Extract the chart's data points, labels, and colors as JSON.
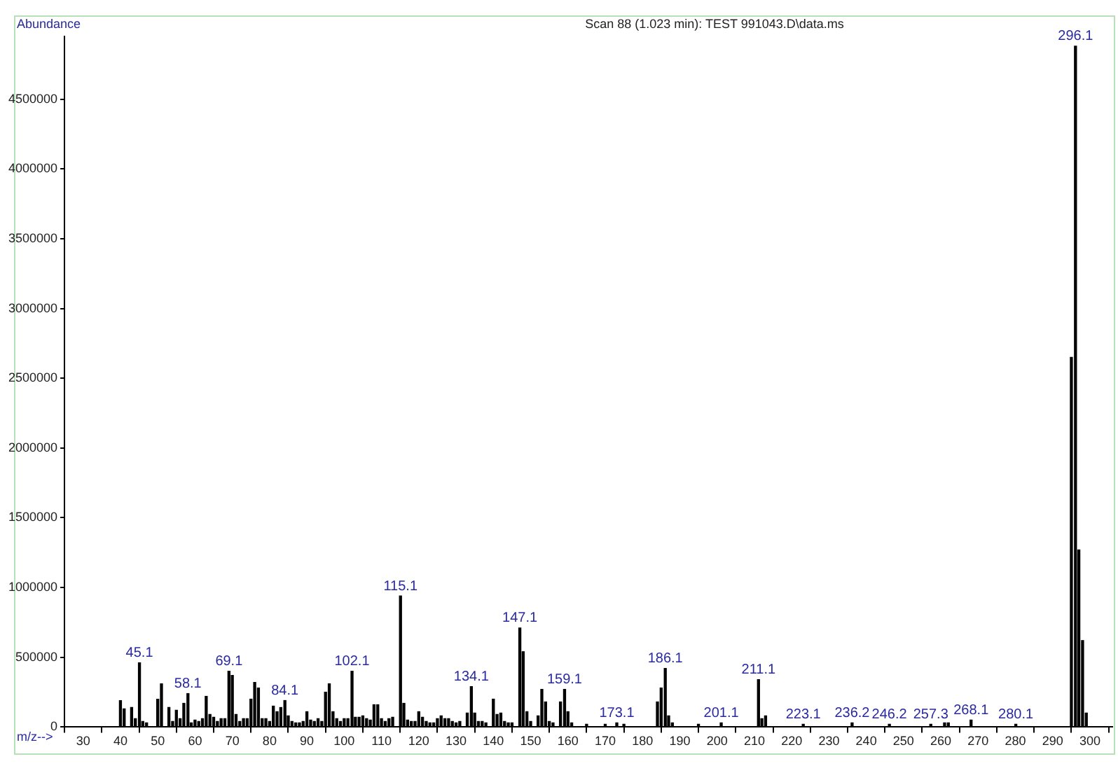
{
  "chart_data": {
    "type": "bar",
    "title": "Scan 88 (1.023 min): TEST 991043.D\\data.ms",
    "xlabel": "m/z-->",
    "ylabel": "Abundance",
    "color": "#000000",
    "x": [
      40,
      41,
      43,
      44,
      45.1,
      46,
      47,
      50,
      51,
      53,
      54,
      55,
      56,
      57,
      58.1,
      59,
      60,
      61,
      62,
      63,
      64,
      65,
      66,
      67,
      68,
      69.1,
      70,
      71,
      72,
      73,
      74,
      75,
      76,
      77,
      78,
      79,
      80,
      81,
      82,
      83,
      84.1,
      85,
      86,
      87,
      88,
      89,
      90,
      91,
      92,
      93,
      94,
      95,
      96,
      97,
      98,
      99,
      100,
      101,
      102.1,
      103,
      104,
      105,
      106,
      107,
      108,
      109,
      110,
      111,
      112,
      113,
      115.1,
      116,
      117,
      118,
      119,
      120,
      121,
      122,
      123,
      124,
      125,
      126,
      127,
      128,
      129,
      130,
      131,
      133,
      134.1,
      135,
      136,
      137,
      138,
      140,
      141,
      142,
      143,
      144,
      145,
      147.1,
      148,
      149,
      150,
      152,
      153,
      154,
      155,
      156,
      158,
      159.1,
      160,
      161,
      165,
      170,
      173.1,
      175,
      184,
      185,
      186.1,
      187,
      188,
      195,
      201.1,
      211.1,
      212,
      213,
      223.1,
      236.2,
      246.2,
      257.3,
      261,
      262,
      268.1,
      280.1,
      295,
      296.1,
      297,
      298,
      299
    ],
    "values": [
      190000,
      130000,
      140000,
      60000,
      460000,
      40000,
      30000,
      200000,
      310000,
      140000,
      40000,
      120000,
      60000,
      170000,
      240000,
      30000,
      50000,
      40000,
      60000,
      220000,
      90000,
      70000,
      40000,
      60000,
      60000,
      400000,
      370000,
      90000,
      40000,
      60000,
      60000,
      200000,
      320000,
      280000,
      60000,
      60000,
      40000,
      150000,
      110000,
      140000,
      190000,
      80000,
      40000,
      30000,
      30000,
      40000,
      110000,
      50000,
      40000,
      60000,
      40000,
      250000,
      310000,
      110000,
      60000,
      40000,
      60000,
      60000,
      400000,
      70000,
      70000,
      80000,
      60000,
      50000,
      160000,
      160000,
      60000,
      40000,
      60000,
      70000,
      940000,
      170000,
      50000,
      40000,
      40000,
      110000,
      70000,
      40000,
      30000,
      30000,
      60000,
      80000,
      60000,
      60000,
      40000,
      30000,
      40000,
      100000,
      290000,
      100000,
      40000,
      40000,
      30000,
      200000,
      90000,
      100000,
      40000,
      30000,
      30000,
      710000,
      540000,
      110000,
      40000,
      80000,
      270000,
      180000,
      40000,
      30000,
      180000,
      270000,
      110000,
      30000,
      20000,
      20000,
      30000,
      20000,
      180000,
      280000,
      420000,
      80000,
      30000,
      20000,
      30000,
      340000,
      60000,
      80000,
      20000,
      30000,
      20000,
      20000,
      30000,
      30000,
      50000,
      20000,
      2650000,
      4880000,
      1270000,
      620000,
      100000
    ],
    "annotations": [
      {
        "text": "45.1",
        "x": 45.1,
        "y": 460000
      },
      {
        "text": "58.1",
        "x": 58.1,
        "y": 240000
      },
      {
        "text": "69.1",
        "x": 69.1,
        "y": 400000
      },
      {
        "text": "84.1",
        "x": 84.1,
        "y": 190000
      },
      {
        "text": "102.1",
        "x": 102.1,
        "y": 400000
      },
      {
        "text": "115.1",
        "x": 115.1,
        "y": 940000
      },
      {
        "text": "134.1",
        "x": 134.1,
        "y": 290000
      },
      {
        "text": "147.1",
        "x": 147.1,
        "y": 710000
      },
      {
        "text": "159.1",
        "x": 159.1,
        "y": 270000
      },
      {
        "text": "173.1",
        "x": 173.1,
        "y": 30000
      },
      {
        "text": "186.1",
        "x": 186.1,
        "y": 420000
      },
      {
        "text": "201.1",
        "x": 201.1,
        "y": 30000
      },
      {
        "text": "211.1",
        "x": 211.1,
        "y": 340000
      },
      {
        "text": "223.1",
        "x": 223.1,
        "y": 20000
      },
      {
        "text": "236.2",
        "x": 236.2,
        "y": 30000
      },
      {
        "text": "246.2",
        "x": 246.2,
        "y": 20000
      },
      {
        "text": "257.3",
        "x": 257.3,
        "y": 20000
      },
      {
        "text": "268.1",
        "x": 268.1,
        "y": 50000
      },
      {
        "text": "280.1",
        "x": 280.1,
        "y": 20000
      },
      {
        "text": "296.1",
        "x": 296.1,
        "y": 4880000
      }
    ],
    "xlim": [
      25,
      306
    ],
    "xticks": [
      30,
      40,
      50,
      60,
      70,
      80,
      90,
      100,
      110,
      120,
      130,
      140,
      150,
      160,
      170,
      180,
      190,
      200,
      210,
      220,
      230,
      240,
      250,
      260,
      270,
      280,
      290,
      300
    ],
    "ylim": [
      0,
      4950000
    ],
    "yticks": [
      0,
      500000,
      1000000,
      1500000,
      2000000,
      2500000,
      3000000,
      3500000,
      4000000,
      4500000
    ],
    "grid": false,
    "legend": false
  }
}
